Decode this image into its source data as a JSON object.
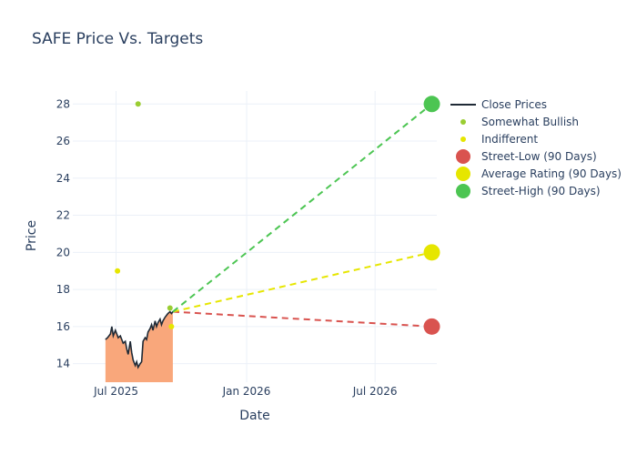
{
  "chart_data": {
    "type": "line",
    "title": "SAFE Price Vs. Targets",
    "xlabel": "Date",
    "ylabel": "Price",
    "x_ticks": [
      "2025-07-01",
      "2026-01-01",
      "2026-07-01"
    ],
    "x_tick_labels": [
      "Jul 2025",
      "Jan 2026",
      "Jul 2026"
    ],
    "x_range": [
      "2025-05-01",
      "2026-09-26"
    ],
    "y_ticks": [
      14,
      16,
      18,
      20,
      22,
      24,
      26,
      28
    ],
    "ylim": [
      13,
      28.7
    ],
    "grid": true,
    "legend_position": "right",
    "series": [
      {
        "name": "Close Prices",
        "kind": "line-area",
        "color": "#1f2a36",
        "fill_color": "#f9a77b",
        "x": [
          "2025-06-16",
          "2025-06-19",
          "2025-06-23",
          "2025-06-25",
          "2025-06-27",
          "2025-06-30",
          "2025-07-02",
          "2025-07-04",
          "2025-07-07",
          "2025-07-09",
          "2025-07-11",
          "2025-07-14",
          "2025-07-16",
          "2025-07-18",
          "2025-07-21",
          "2025-07-23",
          "2025-07-25",
          "2025-07-28",
          "2025-07-30",
          "2025-08-01",
          "2025-08-04",
          "2025-08-06",
          "2025-08-08",
          "2025-08-11",
          "2025-08-13",
          "2025-08-15",
          "2025-08-18",
          "2025-08-20",
          "2025-08-22",
          "2025-08-25",
          "2025-08-27",
          "2025-08-29",
          "2025-09-01",
          "2025-09-03",
          "2025-09-05",
          "2025-09-08",
          "2025-09-10",
          "2025-09-12",
          "2025-09-15",
          "2025-09-17",
          "2025-09-19"
        ],
        "y": [
          15.3,
          15.4,
          15.6,
          16.0,
          15.5,
          15.8,
          15.6,
          15.4,
          15.5,
          15.3,
          15.1,
          15.2,
          14.8,
          14.5,
          15.2,
          14.6,
          14.2,
          13.9,
          14.1,
          13.8,
          14.0,
          14.1,
          15.2,
          15.4,
          15.3,
          15.7,
          15.9,
          16.1,
          15.8,
          16.3,
          16.0,
          16.2,
          16.4,
          16.1,
          16.3,
          16.5,
          16.6,
          16.7,
          16.8,
          16.7,
          16.8
        ]
      },
      {
        "name": "Somewhat Bullish",
        "kind": "markers",
        "color": "#9acd32",
        "points": [
          {
            "x": "2025-08-01",
            "y": 28
          },
          {
            "x": "2025-09-15",
            "y": 17
          }
        ]
      },
      {
        "name": "Indifferent",
        "kind": "markers",
        "color": "#e6e600",
        "points": [
          {
            "x": "2025-07-03",
            "y": 19
          },
          {
            "x": "2025-09-17",
            "y": 16
          }
        ]
      },
      {
        "name": "Street-Low (90 Days)",
        "kind": "target",
        "color": "#d9534f",
        "from": {
          "x": "2025-09-19",
          "y": 16.8
        },
        "to": {
          "x": "2026-09-19",
          "y": 16
        }
      },
      {
        "name": "Average Rating (90 Days)",
        "kind": "target",
        "color": "#e6e600",
        "from": {
          "x": "2025-09-19",
          "y": 16.8
        },
        "to": {
          "x": "2026-09-19",
          "y": 20
        }
      },
      {
        "name": "Street-High (90 Days)",
        "kind": "target",
        "color": "#4cc552",
        "from": {
          "x": "2025-09-19",
          "y": 16.8
        },
        "to": {
          "x": "2026-09-19",
          "y": 28
        }
      }
    ]
  }
}
